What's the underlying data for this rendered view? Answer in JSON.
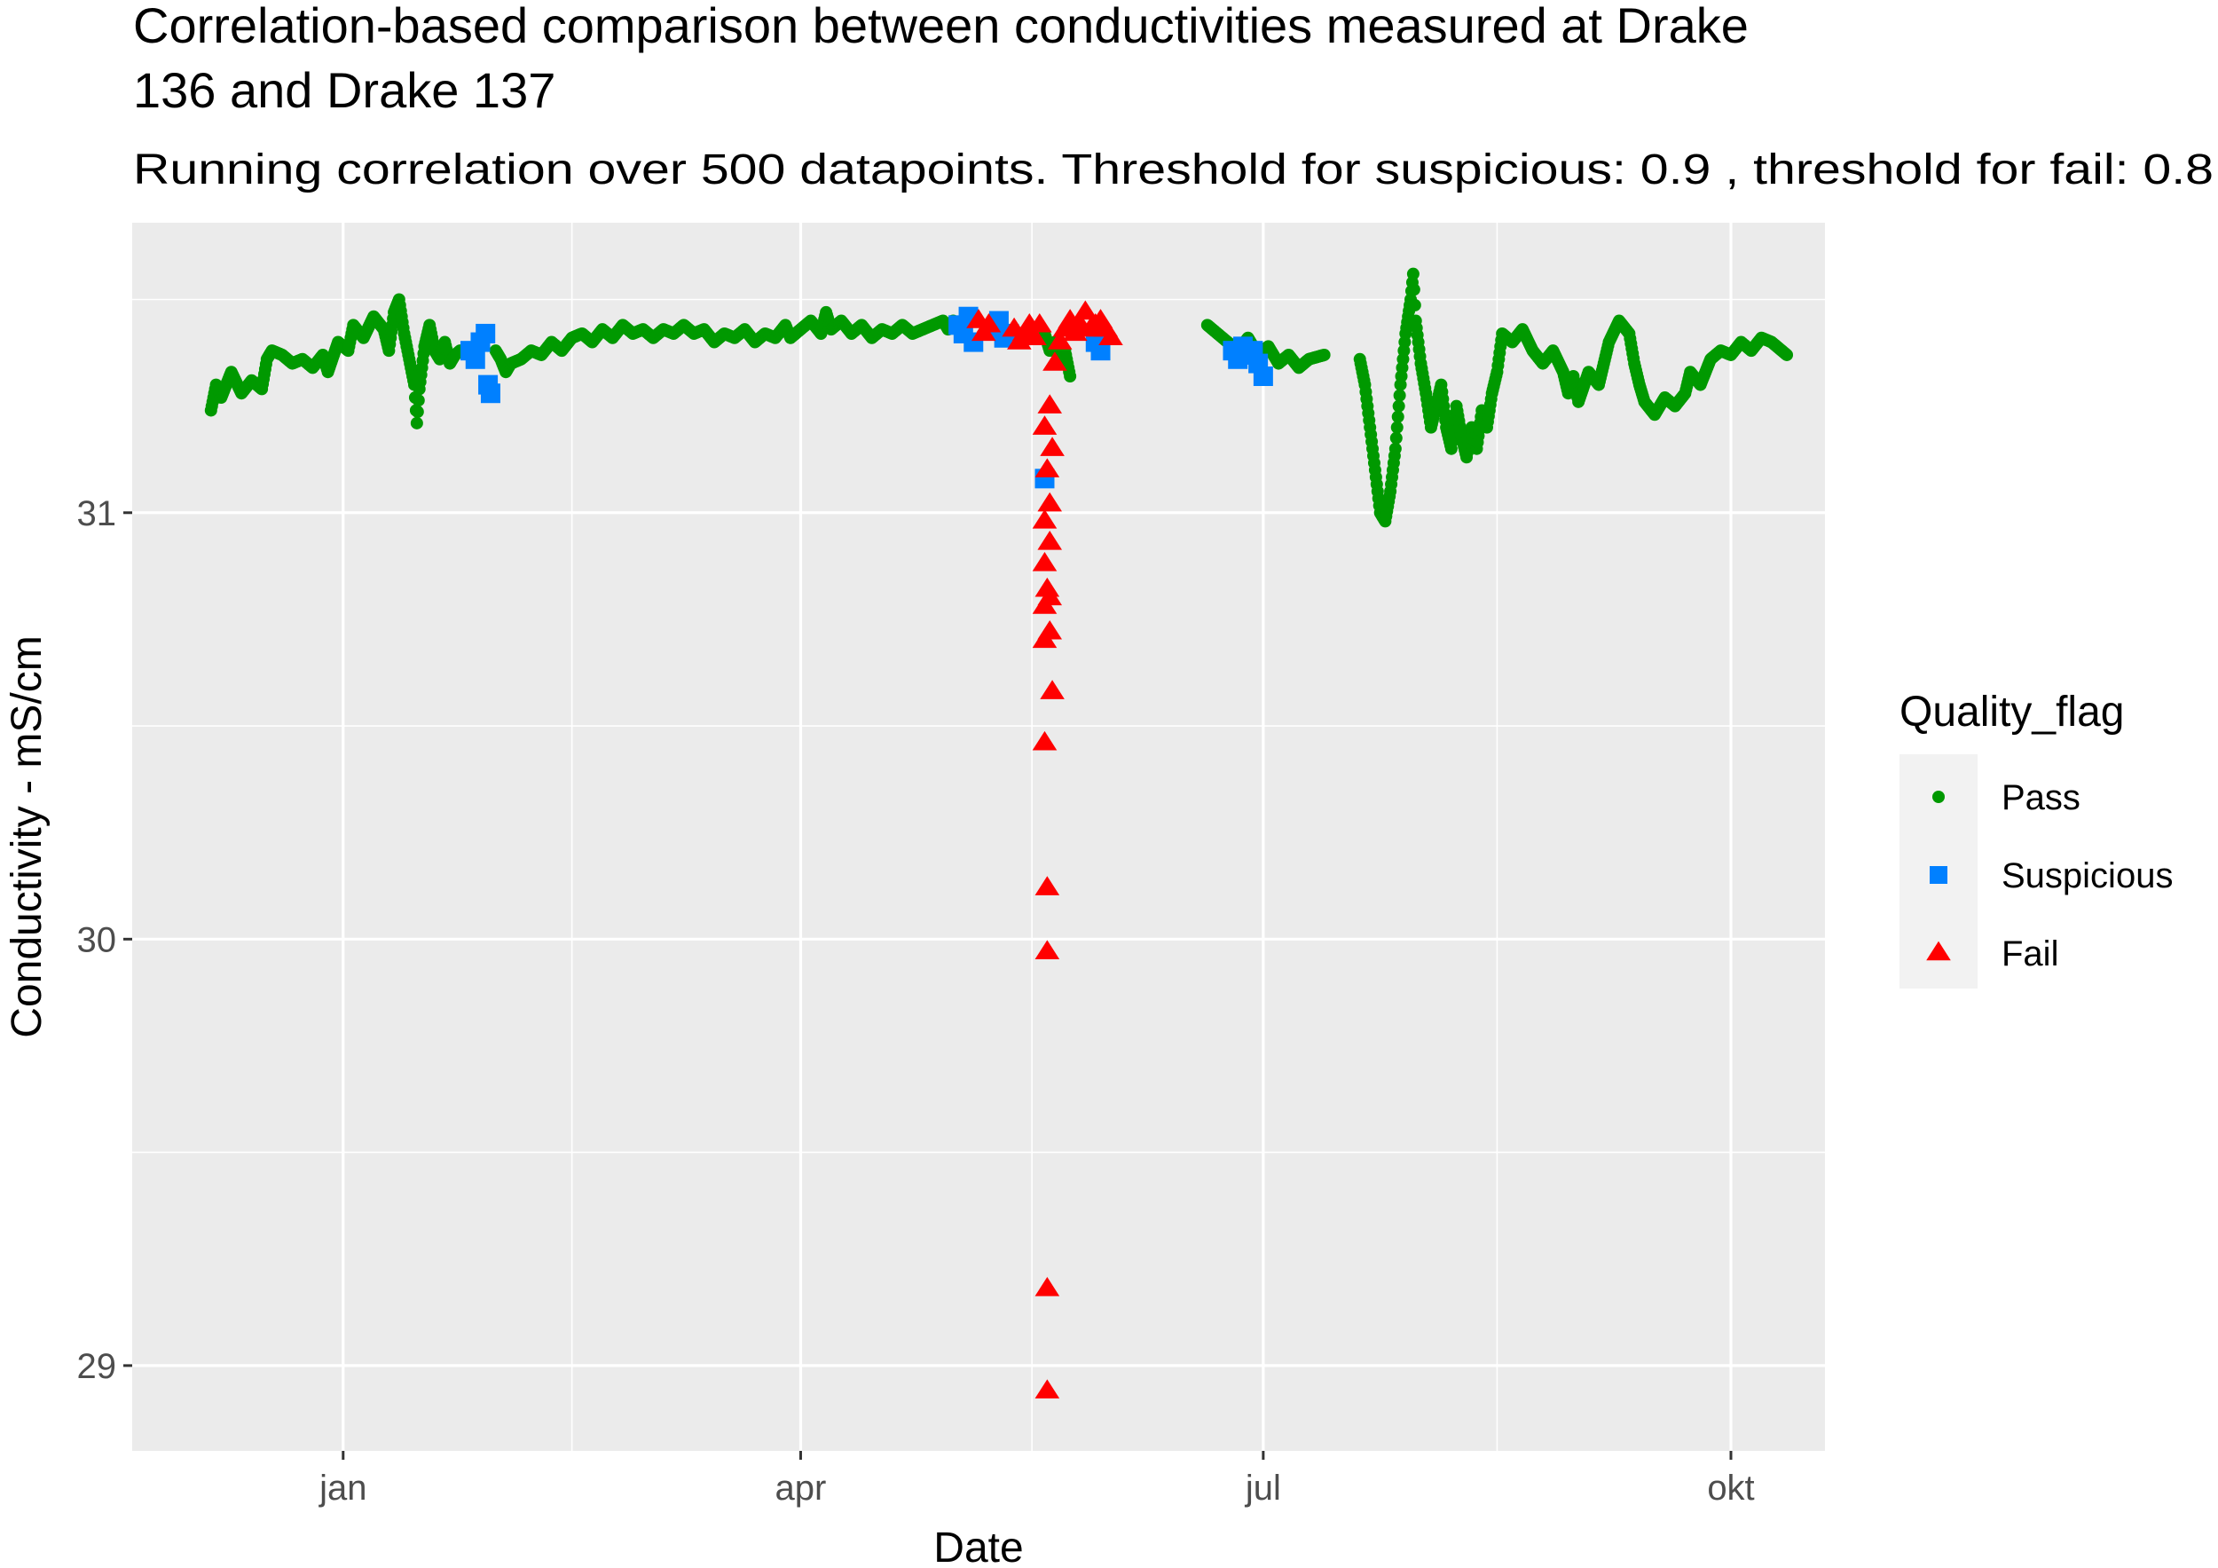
{
  "chart_data": {
    "type": "scatter",
    "title_lines": [
      "Correlation-based comparison between conductivities measured at Drake",
      "136 and Drake 137"
    ],
    "subtitle": "Running correlation over 500 datapoints. Threshold for suspicious:  0.9 , threshold for fail:  0.8",
    "xlabel": "Date",
    "ylabel": "Conductivity - mS/cm",
    "x_axis": {
      "unit": "days since jan 1",
      "range": [
        -41.5,
        291.5
      ],
      "major_ticks": [
        {
          "value": 0,
          "label": "jan"
        },
        {
          "value": 90,
          "label": "apr"
        },
        {
          "value": 181,
          "label": "jul"
        },
        {
          "value": 273,
          "label": "okt"
        }
      ],
      "minor_ticks": [
        45,
        135.5,
        227
      ]
    },
    "y_axis": {
      "range": [
        28.8,
        31.68
      ],
      "major_ticks": [
        {
          "value": 29,
          "label": "29"
        },
        {
          "value": 30,
          "label": "30"
        },
        {
          "value": 31,
          "label": "31"
        }
      ],
      "minor_ticks": [
        29.5,
        30.5,
        31.5
      ]
    },
    "grid": true,
    "legend": {
      "title": "Quality_flag",
      "position": "right",
      "entries": [
        {
          "label": "Pass",
          "shape": "circle",
          "color": "#009900"
        },
        {
          "label": "Suspicious",
          "shape": "square",
          "color": "#0080FF"
        },
        {
          "label": "Fail",
          "shape": "triangle",
          "color": "#FF0000"
        }
      ]
    },
    "series": [
      {
        "name": "Pass",
        "shape": "circle",
        "color": "#009900",
        "points": [
          [
            -26,
            31.24
          ],
          [
            -25,
            31.3
          ],
          [
            -24,
            31.27
          ],
          [
            -22,
            31.33
          ],
          [
            -20,
            31.28
          ],
          [
            -18,
            31.31
          ],
          [
            -16,
            31.29
          ],
          [
            -15,
            31.36
          ],
          [
            -14,
            31.38
          ],
          [
            -12,
            31.37
          ],
          [
            -10,
            31.35
          ],
          [
            -8,
            31.36
          ],
          [
            -6,
            31.34
          ],
          [
            -4,
            31.37
          ],
          [
            -3,
            31.33
          ],
          [
            -1,
            31.4
          ],
          [
            1,
            31.38
          ],
          [
            2,
            31.44
          ],
          [
            4,
            31.41
          ],
          [
            6,
            31.46
          ],
          [
            8,
            31.43
          ],
          [
            9,
            31.38
          ],
          [
            10,
            31.47
          ],
          [
            11,
            31.5
          ],
          [
            12,
            31.42
          ],
          [
            13,
            31.36
          ],
          [
            14,
            31.3
          ],
          [
            14.5,
            31.21
          ],
          [
            15,
            31.29
          ],
          [
            16,
            31.39
          ],
          [
            17,
            31.44
          ],
          [
            18,
            31.38
          ],
          [
            19,
            31.36
          ],
          [
            20,
            31.4
          ],
          [
            21,
            31.35
          ],
          [
            22,
            31.37
          ],
          [
            23,
            31.38
          ],
          [
            30,
            31.38
          ],
          [
            31,
            31.36
          ],
          [
            32,
            31.33
          ],
          [
            33,
            31.35
          ],
          [
            35,
            31.36
          ],
          [
            37,
            31.38
          ],
          [
            39,
            31.37
          ],
          [
            41,
            31.4
          ],
          [
            43,
            31.38
          ],
          [
            45,
            31.41
          ],
          [
            47,
            31.42
          ],
          [
            49,
            31.4
          ],
          [
            51,
            31.43
          ],
          [
            53,
            31.41
          ],
          [
            55,
            31.44
          ],
          [
            57,
            31.42
          ],
          [
            59,
            31.43
          ],
          [
            61,
            31.41
          ],
          [
            63,
            31.43
          ],
          [
            65,
            31.42
          ],
          [
            67,
            31.44
          ],
          [
            69,
            31.42
          ],
          [
            71,
            31.43
          ],
          [
            73,
            31.4
          ],
          [
            75,
            31.42
          ],
          [
            77,
            31.41
          ],
          [
            79,
            31.43
          ],
          [
            81,
            31.4
          ],
          [
            83,
            31.42
          ],
          [
            85,
            31.41
          ],
          [
            87,
            31.44
          ],
          [
            88,
            31.41
          ],
          [
            90,
            31.43
          ],
          [
            92,
            31.45
          ],
          [
            94,
            31.42
          ],
          [
            95,
            31.47
          ],
          [
            96,
            31.43
          ],
          [
            98,
            31.45
          ],
          [
            100,
            31.42
          ],
          [
            102,
            31.44
          ],
          [
            104,
            31.41
          ],
          [
            106,
            31.43
          ],
          [
            108,
            31.42
          ],
          [
            110,
            31.44
          ],
          [
            112,
            31.42
          ],
          [
            114,
            31.43
          ],
          [
            116,
            31.44
          ],
          [
            118,
            31.45
          ],
          [
            119,
            31.43
          ],
          [
            120,
            31.45
          ],
          [
            138,
            31.42
          ],
          [
            139,
            31.38
          ],
          [
            140,
            31.4
          ],
          [
            141,
            31.35
          ],
          [
            142,
            31.38
          ],
          [
            143,
            31.32
          ],
          [
            170,
            31.44
          ],
          [
            172,
            31.42
          ],
          [
            174,
            31.4
          ],
          [
            176,
            31.38
          ],
          [
            178,
            31.41
          ],
          [
            180,
            31.37
          ],
          [
            182,
            31.39
          ],
          [
            184,
            31.35
          ],
          [
            186,
            31.37
          ],
          [
            188,
            31.34
          ],
          [
            190,
            31.36
          ],
          [
            193,
            31.37
          ],
          [
            200,
            31.36
          ],
          [
            201,
            31.3
          ],
          [
            202,
            31.2
          ],
          [
            203,
            31.1
          ],
          [
            204,
            31.0
          ],
          [
            205,
            30.98
          ],
          [
            206,
            31.05
          ],
          [
            207,
            31.15
          ],
          [
            208,
            31.3
          ],
          [
            209,
            31.42
          ],
          [
            210,
            31.5
          ],
          [
            210.5,
            31.56
          ],
          [
            211,
            31.45
          ],
          [
            212,
            31.35
          ],
          [
            213,
            31.28
          ],
          [
            214,
            31.2
          ],
          [
            215,
            31.25
          ],
          [
            216,
            31.3
          ],
          [
            217,
            31.2
          ],
          [
            218,
            31.15
          ],
          [
            219,
            31.25
          ],
          [
            220,
            31.18
          ],
          [
            221,
            31.13
          ],
          [
            222,
            31.2
          ],
          [
            223,
            31.15
          ],
          [
            224,
            31.24
          ],
          [
            225,
            31.2
          ],
          [
            226,
            31.28
          ],
          [
            227,
            31.33
          ],
          [
            228,
            31.42
          ],
          [
            230,
            31.4
          ],
          [
            232,
            31.43
          ],
          [
            234,
            31.38
          ],
          [
            236,
            31.35
          ],
          [
            238,
            31.38
          ],
          [
            240,
            31.33
          ],
          [
            241,
            31.28
          ],
          [
            242,
            31.32
          ],
          [
            243,
            31.26
          ],
          [
            245,
            31.33
          ],
          [
            247,
            31.3
          ],
          [
            249,
            31.4
          ],
          [
            251,
            31.45
          ],
          [
            253,
            31.42
          ],
          [
            254,
            31.35
          ],
          [
            255,
            31.3
          ],
          [
            256,
            31.26
          ],
          [
            258,
            31.23
          ],
          [
            260,
            31.27
          ],
          [
            262,
            31.25
          ],
          [
            264,
            31.28
          ],
          [
            265,
            31.33
          ],
          [
            267,
            31.3
          ],
          [
            269,
            31.36
          ],
          [
            271,
            31.38
          ],
          [
            273,
            31.37
          ],
          [
            275,
            31.4
          ],
          [
            277,
            31.38
          ],
          [
            279,
            31.41
          ],
          [
            281,
            31.4
          ],
          [
            283,
            31.38
          ],
          [
            284,
            31.37
          ]
        ]
      },
      {
        "name": "Suspicious",
        "shape": "square",
        "color": "#0080FF",
        "points": [
          [
            25,
            31.38
          ],
          [
            26,
            31.36
          ],
          [
            27,
            31.4
          ],
          [
            28,
            31.42
          ],
          [
            28.5,
            31.3
          ],
          [
            29,
            31.28
          ],
          [
            121,
            31.44
          ],
          [
            122,
            31.42
          ],
          [
            123,
            31.46
          ],
          [
            124,
            31.4
          ],
          [
            128,
            31.43
          ],
          [
            129,
            31.45
          ],
          [
            130,
            31.41
          ],
          [
            131,
            31.42
          ],
          [
            138,
            31.08
          ],
          [
            148,
            31.4
          ],
          [
            149,
            31.38
          ],
          [
            175,
            31.38
          ],
          [
            176,
            31.36
          ],
          [
            177,
            31.39
          ],
          [
            178,
            31.37
          ],
          [
            179,
            31.38
          ],
          [
            180,
            31.35
          ],
          [
            181,
            31.32
          ]
        ]
      },
      {
        "name": "Fail",
        "shape": "triangle",
        "color": "#FF0000",
        "points": [
          [
            125,
            31.45
          ],
          [
            126,
            31.42
          ],
          [
            127,
            31.44
          ],
          [
            132,
            31.43
          ],
          [
            133,
            31.4
          ],
          [
            134,
            31.42
          ],
          [
            135,
            31.44
          ],
          [
            136,
            31.41
          ],
          [
            137,
            31.44
          ],
          [
            138,
            31.2
          ],
          [
            139,
            31.25
          ],
          [
            139.5,
            31.15
          ],
          [
            138.5,
            31.1
          ],
          [
            139,
            31.02
          ],
          [
            138,
            30.98
          ],
          [
            139,
            30.93
          ],
          [
            138,
            30.88
          ],
          [
            138.5,
            30.82
          ],
          [
            139,
            30.8
          ],
          [
            138,
            30.78
          ],
          [
            139,
            30.72
          ],
          [
            138,
            30.7
          ],
          [
            139.5,
            30.58
          ],
          [
            138,
            30.46
          ],
          [
            138.5,
            30.12
          ],
          [
            138.5,
            29.97
          ],
          [
            138.5,
            29.18
          ],
          [
            138.5,
            28.94
          ],
          [
            140,
            31.35
          ],
          [
            141,
            31.4
          ],
          [
            142,
            31.43
          ],
          [
            143,
            31.45
          ],
          [
            144,
            31.42
          ],
          [
            145,
            31.44
          ],
          [
            146,
            31.47
          ],
          [
            147,
            31.43
          ],
          [
            148,
            31.44
          ],
          [
            149,
            31.45
          ],
          [
            150,
            31.43
          ],
          [
            151,
            31.41
          ]
        ]
      }
    ]
  }
}
